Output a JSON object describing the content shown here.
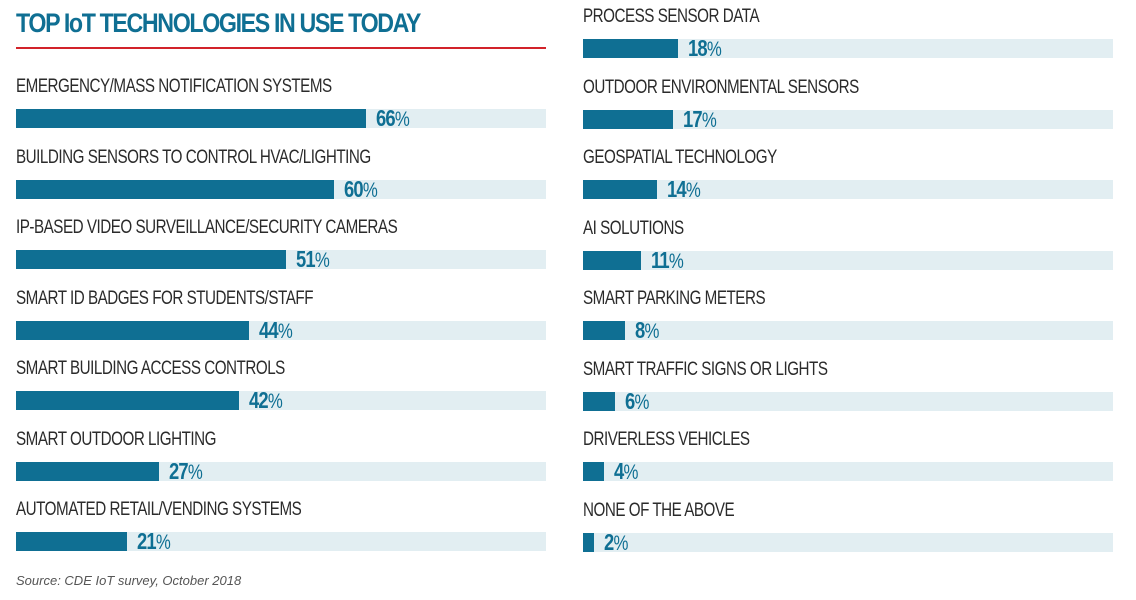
{
  "title": "TOP IoT TECHNOLOGIES IN USE TODAY",
  "source": "Source: CDE IoT survey, October 2018",
  "colors": {
    "bar": "#0f6f93",
    "track": "#e2eef2",
    "rule": "#d2232a",
    "title": "#0f6f93"
  },
  "chart_data": {
    "type": "bar",
    "orientation": "horizontal",
    "title": "TOP IoT TECHNOLOGIES IN USE TODAY",
    "unit": "%",
    "xlim": [
      0,
      100
    ],
    "grid": false,
    "categories": [
      "EMERGENCY/MASS NOTIFICATION SYSTEMS",
      "BUILDING SENSORS TO CONTROL HVAC/LIGHTING",
      "IP-BASED VIDEO SURVEILLANCE/SECURITY CAMERAS",
      "SMART ID BADGES FOR STUDENTS/STAFF",
      "SMART BUILDING ACCESS CONTROLS",
      "SMART OUTDOOR LIGHTING",
      "AUTOMATED RETAIL/VENDING SYSTEMS",
      "PROCESS SENSOR DATA",
      "OUTDOOR ENVIRONMENTAL SENSORS",
      "GEOSPATIAL TECHNOLOGY",
      "AI SOLUTIONS",
      "SMART PARKING METERS",
      "SMART TRAFFIC SIGNS OR LIGHTS",
      "DRIVERLESS VEHICLES",
      "NONE OF THE ABOVE"
    ],
    "values": [
      66,
      60,
      51,
      44,
      42,
      27,
      21,
      18,
      17,
      14,
      11,
      8,
      6,
      4,
      2
    ]
  }
}
